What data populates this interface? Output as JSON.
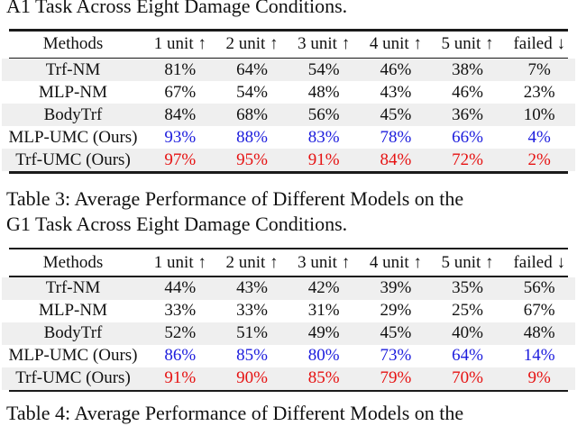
{
  "captions": {
    "table2_fragment": "A1 Task Across Eight Damage Conditions.",
    "table3_line1": "Table 3: Average Performance of Different Models on the",
    "table3_line2": "G1 Task Across Eight Damage Conditions.",
    "table4_fragment": "Table 4: Average Performance of Different Models on the"
  },
  "colors": {
    "ours_blue": "#1d1ddd",
    "ours_red": "#e61212",
    "stripe": "#efefef",
    "rule": "#1a1a1a"
  },
  "columns": [
    "Methods",
    "1 unit ↑",
    "2 unit ↑",
    "3 unit ↑",
    "4 unit ↑",
    "5 unit ↑",
    "failed ↓"
  ],
  "tables": [
    {
      "task": "A1",
      "rows": [
        {
          "method": "Trf-NM",
          "values": [
            "81%",
            "64%",
            "54%",
            "46%",
            "38%",
            "7%"
          ],
          "color": "black"
        },
        {
          "method": "MLP-NM",
          "values": [
            "67%",
            "54%",
            "48%",
            "43%",
            "46%",
            "23%"
          ],
          "color": "black"
        },
        {
          "method": "BodyTrf",
          "values": [
            "84%",
            "68%",
            "56%",
            "45%",
            "36%",
            "10%"
          ],
          "color": "black"
        },
        {
          "method": "MLP-UMC (Ours)",
          "values": [
            "93%",
            "88%",
            "83%",
            "78%",
            "66%",
            "4%"
          ],
          "color": "blue"
        },
        {
          "method": "Trf-UMC (Ours)",
          "values": [
            "97%",
            "95%",
            "91%",
            "84%",
            "72%",
            "2%"
          ],
          "color": "red"
        }
      ]
    },
    {
      "task": "G1",
      "rows": [
        {
          "method": "Trf-NM",
          "values": [
            "44%",
            "43%",
            "42%",
            "39%",
            "35%",
            "56%"
          ],
          "color": "black"
        },
        {
          "method": "MLP-NM",
          "values": [
            "33%",
            "33%",
            "31%",
            "29%",
            "25%",
            "67%"
          ],
          "color": "black"
        },
        {
          "method": "BodyTrf",
          "values": [
            "52%",
            "51%",
            "49%",
            "45%",
            "40%",
            "48%"
          ],
          "color": "black"
        },
        {
          "method": "MLP-UMC (Ours)",
          "values": [
            "86%",
            "85%",
            "80%",
            "73%",
            "64%",
            "14%"
          ],
          "color": "blue"
        },
        {
          "method": "Trf-UMC (Ours)",
          "values": [
            "91%",
            "90%",
            "85%",
            "79%",
            "70%",
            "9%"
          ],
          "color": "red"
        }
      ]
    }
  ]
}
